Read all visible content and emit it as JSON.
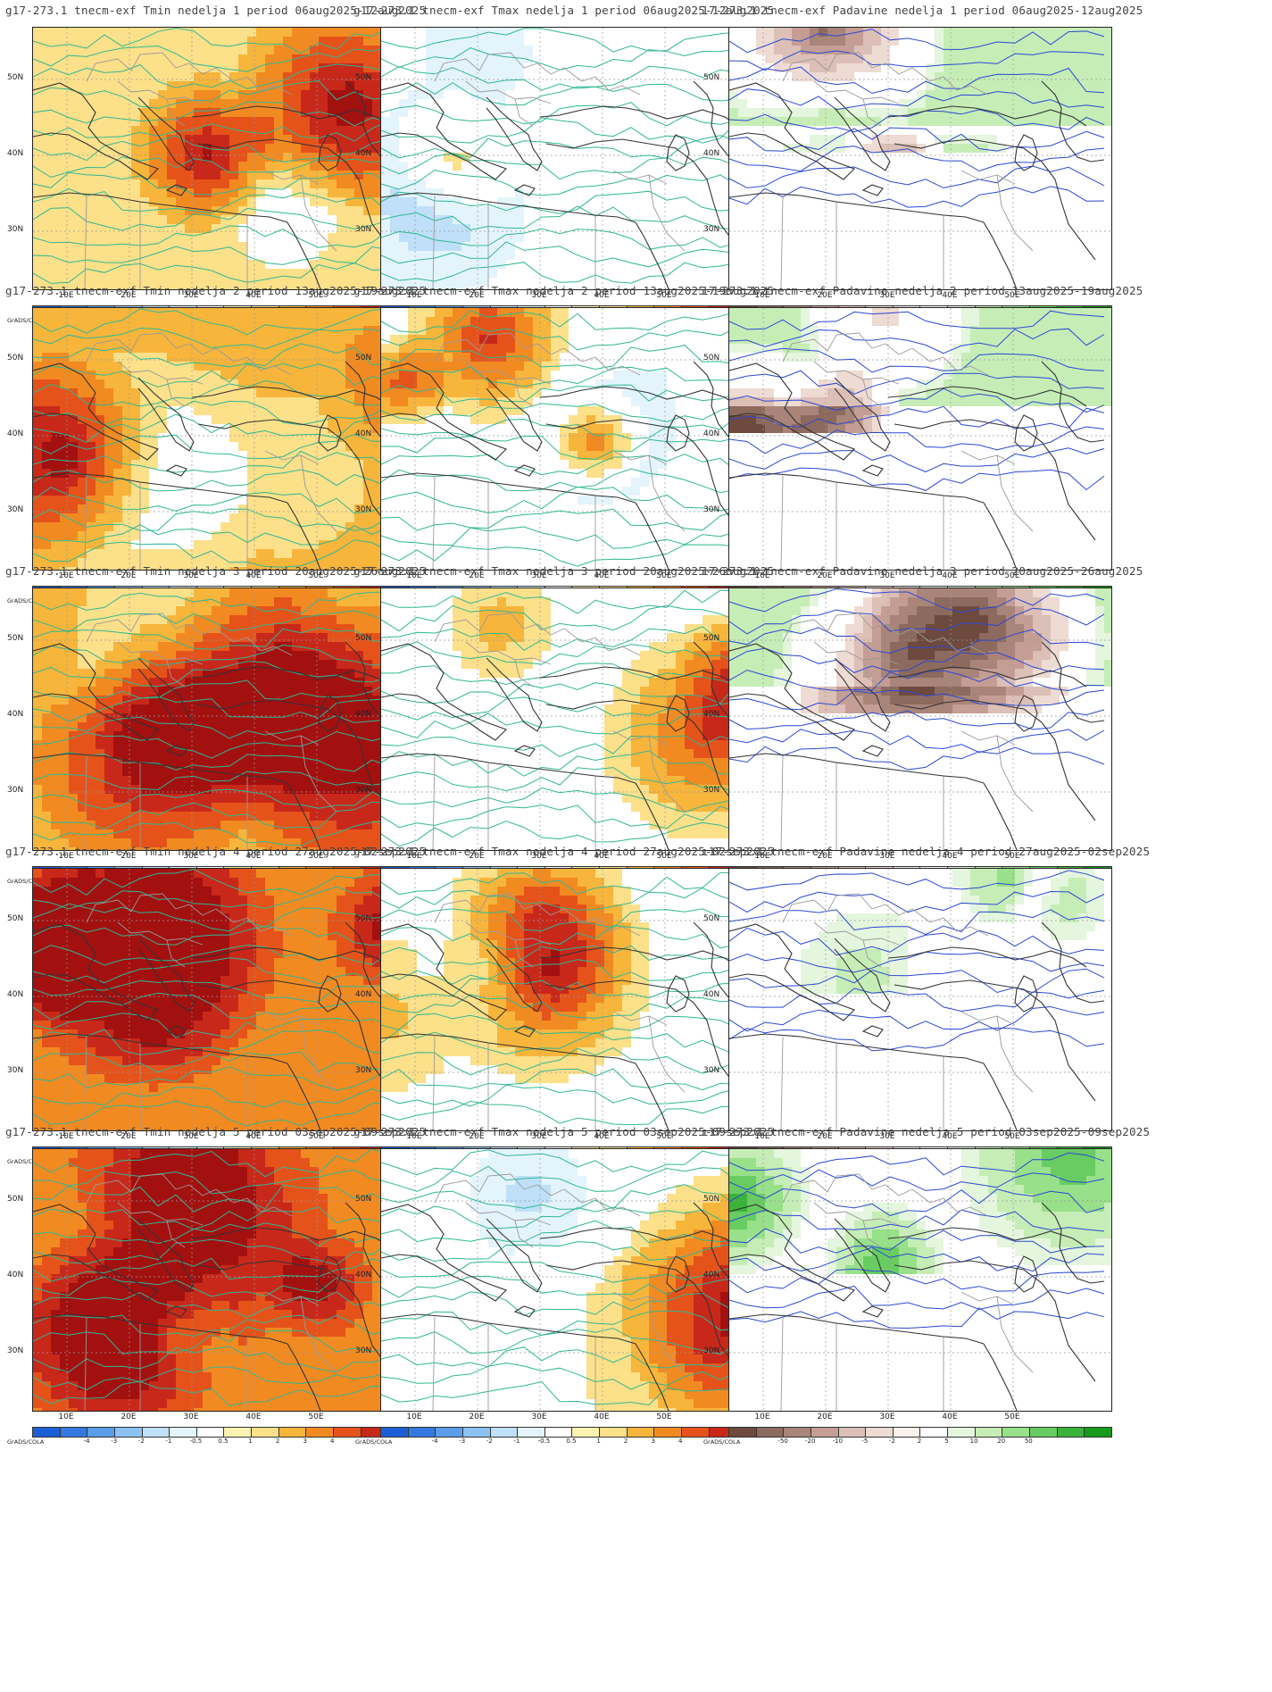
{
  "labels": {
    "lat": [
      "50N",
      "40N",
      "30N"
    ],
    "lon": [
      "10E",
      "20E",
      "30E",
      "40E",
      "50E"
    ],
    "credit": "GrADS/COLA"
  },
  "colorbars": {
    "temp": {
      "labels": [
        "-4",
        "-3",
        "-2",
        "-1",
        "-0.5",
        "0.5",
        "1",
        "2",
        "3",
        "4"
      ],
      "colors": [
        "#1c5fd4",
        "#3579e0",
        "#5a9ce8",
        "#8cc2f2",
        "#bfe0f8",
        "#e4f4fc",
        "#ffffff",
        "#fdf3b0",
        "#fce08a",
        "#f7b53c",
        "#f28a22",
        "#e5531a",
        "#c8281a",
        "#a31010"
      ]
    },
    "precip": {
      "labels": [
        "-50",
        "-20",
        "-10",
        "-5",
        "-2",
        "2",
        "5",
        "10",
        "20",
        "50"
      ],
      "colors": [
        "#6e4a3e",
        "#8d6a5e",
        "#a98479",
        "#c49d94",
        "#dcbfb6",
        "#eedbd3",
        "#faf0ec",
        "#ffffff",
        "#e4f6dd",
        "#c6edb6",
        "#98e08a",
        "#68cc62",
        "#3bb23a",
        "#159a1c"
      ]
    }
  },
  "panels": [
    {
      "title": "g17-273.1 tnecm-exf Tmin nedelja 1 period 06aug2025-12aug2025",
      "variable": "Tmin",
      "week": 1
    },
    {
      "title": "g17-273.1 tnecm-exf Tmax nedelja 1 period 06aug2025-12aug2025",
      "variable": "Tmax",
      "week": 1
    },
    {
      "title": "17-273.1 tnecm-exf Padavine nedelja 1 period 06aug2025-12aug2025",
      "variable": "Padavine",
      "week": 1
    },
    {
      "title": "g17-273.1 tnecm-exf Tmin nedelja 2 period 13aug2025-19aug2025",
      "variable": "Tmin",
      "week": 2
    },
    {
      "title": "g17-273.1 tnecm-exf Tmax nedelja 2 period 13aug2025-19aug2025",
      "variable": "Tmax",
      "week": 2
    },
    {
      "title": "17-273.1 tnecm-exf Padavine nedelja 2 period 13aug2025-19aug2025",
      "variable": "Padavine",
      "week": 2
    },
    {
      "title": "g17-273.1 tnecm-exf Tmin nedelja 3 period 20aug2025-26aug2025",
      "variable": "Tmin",
      "week": 3
    },
    {
      "title": "g17-273.1 tnecm-exf Tmax nedelja 3 period 20aug2025-26aug2025",
      "variable": "Tmax",
      "week": 3
    },
    {
      "title": "17-273.1 tnecm-exf Padavine nedelja 3 period 20aug2025-26aug2025",
      "variable": "Padavine",
      "week": 3
    },
    {
      "title": "g17-273.1 tnecm-exf Tmin nedelja 4 period 27aug2025-02sep2025",
      "variable": "Tmin",
      "week": 4
    },
    {
      "title": "g17-273.1 tnecm-exf Tmax nedelja 4 period 27aug2025-02sep2025",
      "variable": "Tmax",
      "week": 4
    },
    {
      "title": "ı17-273.1 tnecm-exf Padavine nedelja 4 period 27aug2025-02sep2025",
      "variable": "Padavine",
      "week": 4
    },
    {
      "title": "g17-273.1 tnecm-exf Tmin nedelja 5 period 03sep2025-09sep2025",
      "variable": "Tmin",
      "week": 5
    },
    {
      "title": "g17-273.1 tnecm-exf Tmax nedelja 5 period 03sep2025-09sep2025",
      "variable": "Tmax",
      "week": 5
    },
    {
      "title": "ı17-273.1 tnecm-exf Padavine nedelja 5 period 03sep2025-09sep2025",
      "variable": "Padavine",
      "week": 5
    }
  ]
}
